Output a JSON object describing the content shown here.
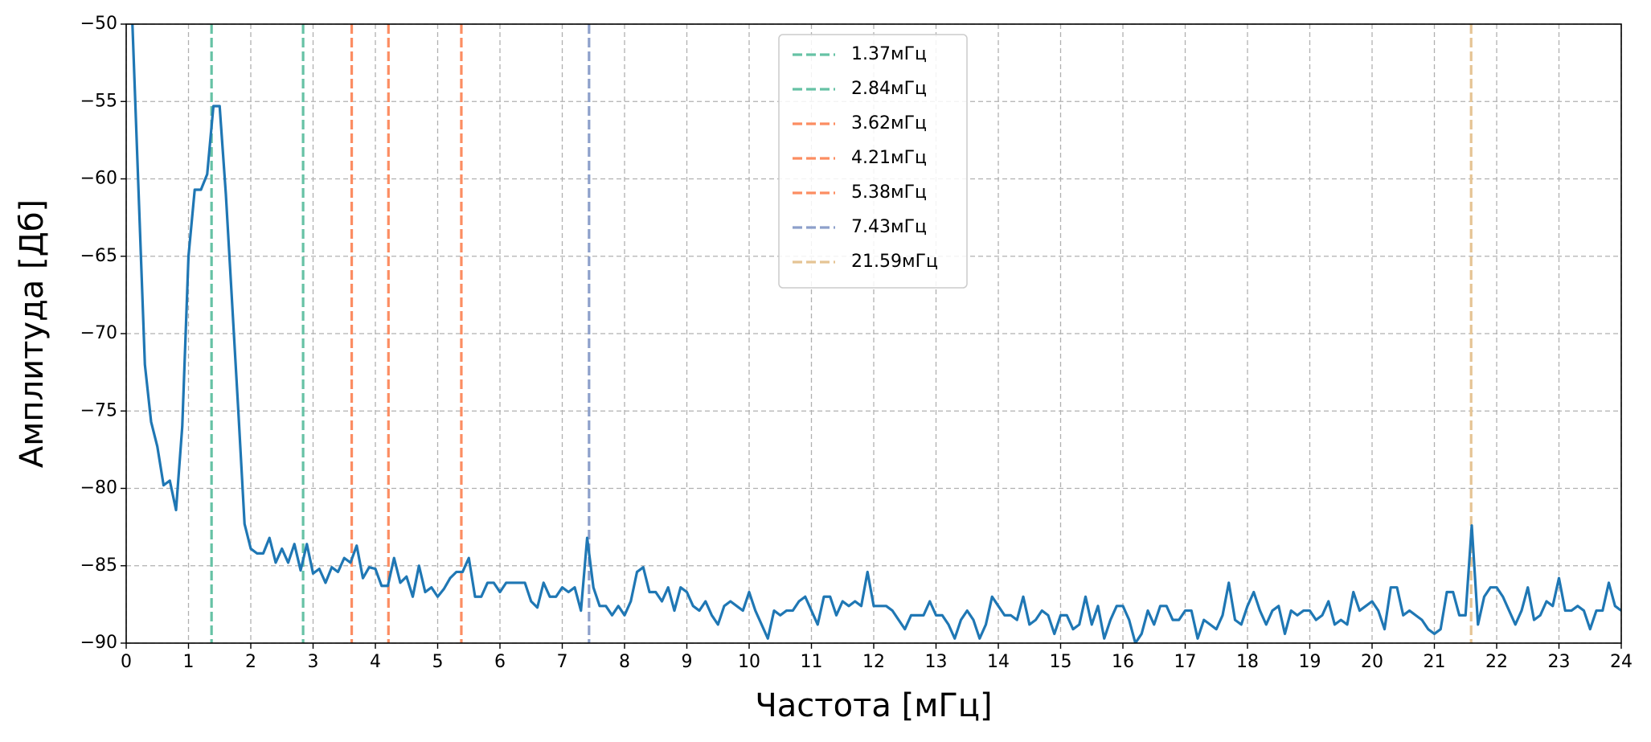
{
  "chart_data": {
    "type": "line",
    "xlabel": "Частота [мГц]",
    "ylabel": "Амплитуда [Дб]",
    "xlim": [
      0,
      24
    ],
    "ylim": [
      -90,
      -50
    ],
    "xticks": [
      0,
      1,
      2,
      3,
      4,
      5,
      6,
      7,
      8,
      9,
      10,
      11,
      12,
      13,
      14,
      15,
      16,
      17,
      18,
      19,
      20,
      21,
      22,
      23,
      24
    ],
    "yticks": [
      {
        "value": -90,
        "label": "−90"
      },
      {
        "value": -85,
        "label": "−85"
      },
      {
        "value": -80,
        "label": "−80"
      },
      {
        "value": -75,
        "label": "−75"
      },
      {
        "value": -70,
        "label": "−70"
      },
      {
        "value": -65,
        "label": "−65"
      },
      {
        "value": -60,
        "label": "−60"
      },
      {
        "value": -55,
        "label": "−55"
      },
      {
        "value": -50,
        "label": "−50"
      }
    ],
    "grid": true,
    "legend": "upper center",
    "series": [
      {
        "color": "#1f77b4",
        "x": [
          0.1,
          0.2,
          0.3,
          0.4,
          0.5,
          0.6,
          0.7,
          0.8,
          0.9,
          1.0,
          1.1,
          1.2,
          1.3,
          1.4,
          1.5,
          1.6,
          1.7,
          1.8,
          1.9,
          2.0,
          2.1,
          2.2,
          2.3,
          2.4,
          2.5,
          2.6,
          2.7,
          2.8,
          2.9,
          3.0,
          3.1,
          3.2,
          3.3,
          3.4,
          3.5,
          3.6,
          3.7,
          3.8,
          3.9,
          4.0,
          4.1,
          4.2,
          4.3,
          4.4,
          4.5,
          4.6,
          4.7,
          4.8,
          4.9,
          5.0,
          5.1,
          5.2,
          5.3,
          5.4,
          5.5,
          5.6,
          5.7,
          5.8,
          5.9,
          6.0,
          6.1,
          6.2,
          6.3,
          6.4,
          6.5,
          6.6,
          6.7,
          6.8,
          6.9,
          7.0,
          7.1,
          7.2,
          7.3,
          7.4,
          7.5,
          7.6,
          7.7,
          7.8,
          7.9,
          8.0,
          8.1,
          8.2,
          8.3,
          8.4,
          8.5,
          8.6,
          8.7,
          8.8,
          8.9,
          9.0,
          9.1,
          9.2,
          9.3,
          9.4,
          9.5,
          9.6,
          9.7,
          9.8,
          9.9,
          10.0,
          10.1,
          10.2,
          10.3,
          10.4,
          10.5,
          10.6,
          10.7,
          10.8,
          10.9,
          11.0,
          11.1,
          11.2,
          11.3,
          11.4,
          11.5,
          11.6,
          11.7,
          11.8,
          11.9,
          12.0,
          12.1,
          12.2,
          12.3,
          12.4,
          12.5,
          12.6,
          12.7,
          12.8,
          12.9,
          13.0,
          13.1,
          13.2,
          13.3,
          13.4,
          13.5,
          13.6,
          13.7,
          13.8,
          13.9,
          14.0,
          14.1,
          14.2,
          14.3,
          14.4,
          14.5,
          14.6,
          14.7,
          14.8,
          14.9,
          15.0,
          15.1,
          15.2,
          15.3,
          15.4,
          15.5,
          15.6,
          15.7,
          15.8,
          15.9,
          16.0,
          16.1,
          16.2,
          16.3,
          16.4,
          16.5,
          16.6,
          16.7,
          16.8,
          16.9,
          17.0,
          17.1,
          17.2,
          17.3,
          17.4,
          17.5,
          17.6,
          17.7,
          17.8,
          17.9,
          18.0,
          18.1,
          18.2,
          18.3,
          18.4,
          18.5,
          18.6,
          18.7,
          18.8,
          18.9,
          19.0,
          19.1,
          19.2,
          19.3,
          19.4,
          19.5,
          19.6,
          19.7,
          19.8,
          19.9,
          20.0,
          20.1,
          20.2,
          20.3,
          20.4,
          20.5,
          20.6,
          20.7,
          20.8,
          20.9,
          21.0,
          21.1,
          21.2,
          21.3,
          21.4,
          21.5,
          21.6,
          21.7,
          21.8,
          21.9,
          22.0,
          22.1,
          22.2,
          22.3,
          22.4,
          22.5,
          22.6,
          22.7,
          22.8,
          22.9,
          23.0,
          23.1,
          23.2,
          23.3,
          23.4,
          23.5,
          23.6,
          23.7,
          23.8,
          23.9,
          24.0
        ],
        "values": [
          -50,
          -61,
          -72,
          -75.7,
          -77.3,
          -79.8,
          -79.5,
          -81.4,
          -76,
          -65,
          -60.7,
          -60.7,
          -59.7,
          -55.3,
          -55.3,
          -61,
          -68,
          -75,
          -82.3,
          -83.9,
          -84.2,
          -84.2,
          -83.2,
          -84.8,
          -83.9,
          -84.8,
          -83.6,
          -85.3,
          -83.6,
          -85.5,
          -85.2,
          -86.1,
          -85.1,
          -85.4,
          -84.5,
          -84.8,
          -83.7,
          -85.8,
          -85.1,
          -85.2,
          -86.3,
          -86.3,
          -84.5,
          -86.1,
          -85.7,
          -87,
          -85,
          -86.7,
          -86.4,
          -87,
          -86.5,
          -85.8,
          -85.4,
          -85.4,
          -84.5,
          -87,
          -87,
          -86.1,
          -86.1,
          -86.7,
          -86.1,
          -86.1,
          -86.1,
          -86.1,
          -87.3,
          -87.7,
          -86.1,
          -87,
          -87,
          -86.4,
          -86.7,
          -86.4,
          -87.9,
          -83.2,
          -86.4,
          -87.6,
          -87.6,
          -88.2,
          -87.6,
          -88.2,
          -87.3,
          -85.4,
          -85.1,
          -86.7,
          -86.7,
          -87.3,
          -86.4,
          -87.9,
          -86.4,
          -86.7,
          -87.6,
          -87.9,
          -87.3,
          -88.2,
          -88.8,
          -87.6,
          -87.3,
          -87.6,
          -87.9,
          -86.7,
          -87.9,
          -88.8,
          -89.7,
          -87.9,
          -88.2,
          -87.9,
          -87.9,
          -87.3,
          -87,
          -87.9,
          -88.8,
          -87,
          -87,
          -88.2,
          -87.3,
          -87.6,
          -87.3,
          -87.6,
          -85.4,
          -87.6,
          -87.6,
          -87.6,
          -87.9,
          -88.5,
          -89.1,
          -88.2,
          -88.2,
          -88.2,
          -87.3,
          -88.2,
          -88.2,
          -88.8,
          -89.7,
          -88.5,
          -87.9,
          -88.5,
          -89.7,
          -88.8,
          -87,
          -87.6,
          -88.2,
          -88.2,
          -88.5,
          -87,
          -88.8,
          -88.5,
          -87.9,
          -88.2,
          -89.4,
          -88.2,
          -88.2,
          -89.1,
          -88.8,
          -87,
          -88.8,
          -87.6,
          -89.7,
          -88.5,
          -87.6,
          -87.6,
          -88.5,
          -90,
          -89.4,
          -87.9,
          -88.8,
          -87.6,
          -87.6,
          -88.5,
          -88.5,
          -87.9,
          -87.9,
          -89.7,
          -88.5,
          -88.8,
          -89.1,
          -88.2,
          -86.1,
          -88.5,
          -88.8,
          -87.6,
          -86.7,
          -87.9,
          -88.8,
          -87.9,
          -87.6,
          -89.4,
          -87.9,
          -88.2,
          -87.9,
          -87.9,
          -88.5,
          -88.2,
          -87.3,
          -88.8,
          -88.5,
          -88.8,
          -86.7,
          -87.9,
          -87.6,
          -87.3,
          -87.9,
          -89.1,
          -86.4,
          -86.4,
          -88.2,
          -87.9,
          -88.2,
          -88.5,
          -89.1,
          -89.4,
          -89.1,
          -86.7,
          -86.7,
          -88.2,
          -88.2,
          -82.4,
          -88.8,
          -87,
          -86.4,
          -86.4,
          -87,
          -87.9,
          -88.8,
          -87.9,
          -86.4,
          -88.5,
          -88.2,
          -87.3,
          -87.6,
          -85.8,
          -87.9,
          -87.9,
          -87.6,
          -87.9,
          -89.1,
          -87.9,
          -87.9,
          -86.1,
          -87.6,
          -87.9
        ]
      }
    ],
    "vlines": [
      {
        "x": 1.37,
        "label": "1.37мГц",
        "color": "#66c2a5"
      },
      {
        "x": 2.84,
        "label": "2.84мГц",
        "color": "#66c2a5"
      },
      {
        "x": 3.62,
        "label": "3.62мГц",
        "color": "#fc8d62"
      },
      {
        "x": 4.21,
        "label": "4.21мГц",
        "color": "#fc8d62"
      },
      {
        "x": 5.38,
        "label": "5.38мГц",
        "color": "#fc8d62"
      },
      {
        "x": 7.43,
        "label": "7.43мГц",
        "color": "#8da0cb"
      },
      {
        "x": 21.59,
        "label": "21.59мГц",
        "color": "#e5c494"
      }
    ]
  }
}
